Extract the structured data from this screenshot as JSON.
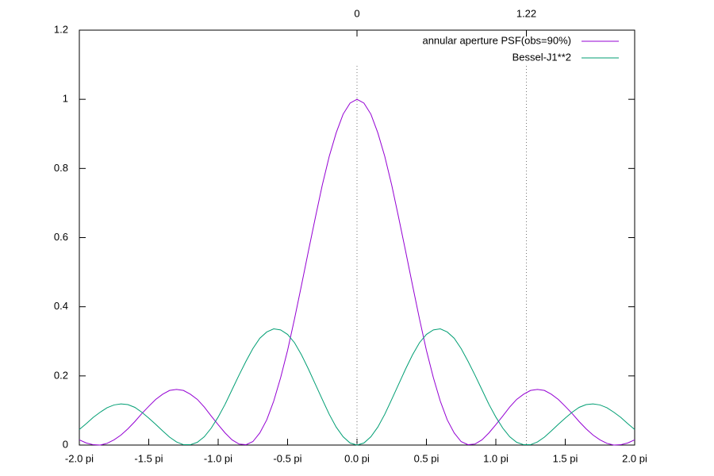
{
  "chart_data": {
    "type": "line",
    "x": [
      -2,
      -1.95,
      -1.9,
      -1.85,
      -1.8,
      -1.75,
      -1.7,
      -1.65,
      -1.6,
      -1.55,
      -1.5,
      -1.45,
      -1.4,
      -1.35,
      -1.3,
      -1.25,
      -1.2,
      -1.15,
      -1.1,
      -1.05,
      -1,
      -0.95,
      -0.9,
      -0.85,
      -0.8,
      -0.75,
      -0.7,
      -0.65,
      -0.6,
      -0.55,
      -0.5,
      -0.45,
      -0.4,
      -0.35,
      -0.3,
      -0.25,
      -0.2,
      -0.15,
      -0.1,
      -0.05,
      0,
      0.05,
      0.1,
      0.15,
      0.2,
      0.25,
      0.3,
      0.35,
      0.4,
      0.45,
      0.5,
      0.55,
      0.6,
      0.65,
      0.7,
      0.75,
      0.8,
      0.85,
      0.9,
      0.95,
      1,
      1.05,
      1.1,
      1.15,
      1.2,
      1.25,
      1.3,
      1.35,
      1.4,
      1.45,
      1.5,
      1.55,
      1.6,
      1.65,
      1.7,
      1.75,
      1.8,
      1.85,
      1.9,
      1.95,
      2
    ],
    "series": [
      {
        "name": "annular aperture PSF(obs=90%)",
        "color": "#9400d3",
        "values": [
          0.015,
          0.006,
          0.001,
          0,
          0.005,
          0.015,
          0.029,
          0.047,
          0.068,
          0.091,
          0.112,
          0.132,
          0.147,
          0.158,
          0.161,
          0.158,
          0.147,
          0.132,
          0.11,
          0.084,
          0.059,
          0.035,
          0.015,
          0.003,
          0.001,
          0.01,
          0.035,
          0.073,
          0.127,
          0.195,
          0.274,
          0.365,
          0.462,
          0.561,
          0.658,
          0.752,
          0.835,
          0.903,
          0.957,
          0.989,
          1,
          0.989,
          0.957,
          0.903,
          0.835,
          0.752,
          0.658,
          0.561,
          0.462,
          0.365,
          0.274,
          0.195,
          0.127,
          0.073,
          0.035,
          0.01,
          0.001,
          0.003,
          0.015,
          0.035,
          0.059,
          0.084,
          0.11,
          0.132,
          0.147,
          0.158,
          0.161,
          0.158,
          0.147,
          0.132,
          0.112,
          0.091,
          0.068,
          0.047,
          0.029,
          0.015,
          0.005,
          0,
          0.001,
          0.006,
          0.015
        ]
      },
      {
        "name": "Bessel-J1**2",
        "color": "#009e73",
        "values": [
          0.045,
          0.062,
          0.08,
          0.095,
          0.108,
          0.116,
          0.119,
          0.117,
          0.109,
          0.095,
          0.078,
          0.06,
          0.041,
          0.023,
          0.009,
          0.001,
          0.001,
          0.008,
          0.024,
          0.049,
          0.081,
          0.118,
          0.16,
          0.202,
          0.242,
          0.279,
          0.309,
          0.327,
          0.336,
          0.333,
          0.32,
          0.296,
          0.261,
          0.22,
          0.176,
          0.132,
          0.089,
          0.052,
          0.024,
          0.006,
          0,
          0.006,
          0.024,
          0.052,
          0.089,
          0.132,
          0.176,
          0.22,
          0.261,
          0.296,
          0.32,
          0.333,
          0.336,
          0.327,
          0.309,
          0.279,
          0.242,
          0.202,
          0.16,
          0.118,
          0.081,
          0.049,
          0.024,
          0.008,
          0.001,
          0.001,
          0.009,
          0.023,
          0.041,
          0.06,
          0.078,
          0.095,
          0.109,
          0.117,
          0.119,
          0.116,
          0.108,
          0.095,
          0.08,
          0.062,
          0.045
        ]
      }
    ],
    "xlim": [
      -2,
      2
    ],
    "xticks": [
      {
        "value": -2,
        "label": "-2.0 pi"
      },
      {
        "value": -1.5,
        "label": "-1.5 pi"
      },
      {
        "value": -1,
        "label": "-1.0 pi"
      },
      {
        "value": -0.5,
        "label": "-0.5 pi"
      },
      {
        "value": 0,
        "label": "0.0 pi"
      },
      {
        "value": 0.5,
        "label": "0.5 pi"
      },
      {
        "value": 1,
        "label": "1.0 pi"
      },
      {
        "value": 1.5,
        "label": "1.5 pi"
      },
      {
        "value": 2,
        "label": "2.0 pi"
      }
    ],
    "x2lim": [
      -2,
      2
    ],
    "x2ticks": [
      0,
      1.22
    ],
    "x2grid": true,
    "ylim": [
      0,
      1.2
    ],
    "yticks": [
      0,
      0.2,
      0.4,
      0.6,
      0.8,
      1,
      1.2
    ],
    "legend": "top-right"
  }
}
